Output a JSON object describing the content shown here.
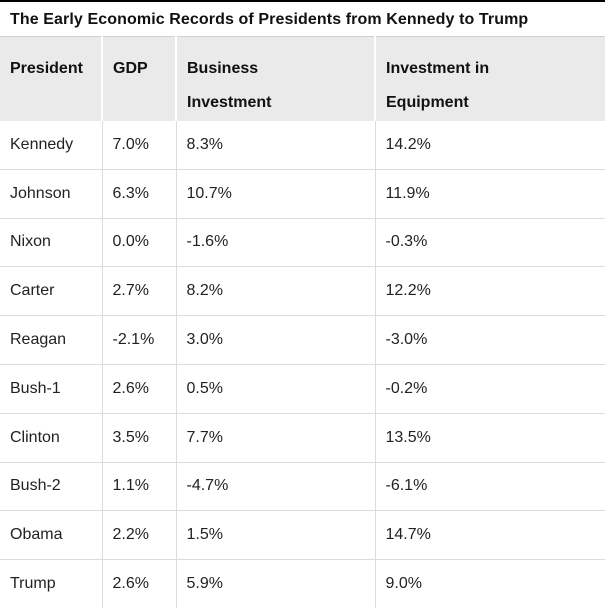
{
  "chart_data": {
    "type": "table",
    "title": "The Early Economic Records of Presidents from Kennedy to Trump",
    "columns": [
      "President",
      "GDP",
      "Business Investment",
      "Investment in Equipment"
    ],
    "column_display": [
      "President",
      "GDP",
      "Business\nInvestment",
      "Investment in\nEquipment"
    ],
    "column_keys": [
      "president",
      "gdp",
      "business-investment",
      "investment-in-equipment"
    ],
    "rows": [
      [
        "Kennedy",
        "7.0%",
        "8.3%",
        "14.2%"
      ],
      [
        "Johnson",
        "6.3%",
        "10.7%",
        "11.9%"
      ],
      [
        "Nixon",
        "0.0%",
        "-1.6%",
        "-0.3%"
      ],
      [
        "Carter",
        "2.7%",
        "8.2%",
        "12.2%"
      ],
      [
        "Reagan",
        "-2.1%",
        "3.0%",
        "-3.0%"
      ],
      [
        "Bush-1",
        "2.6%",
        "0.5%",
        "-0.2%"
      ],
      [
        "Clinton",
        "3.5%",
        "7.7%",
        "13.5%"
      ],
      [
        "Bush-2",
        "1.1%",
        "-4.7%",
        "-6.1%"
      ],
      [
        "Obama",
        "2.2%",
        "1.5%",
        "14.7%"
      ],
      [
        "Trump",
        "2.6%",
        "5.9%",
        "9.0%"
      ]
    ]
  },
  "colors": {
    "top_rule": "#000000",
    "header_background": "#eaeaea",
    "header_divider": "#ffffff",
    "grid_line": "#dcdcdc",
    "title_text": "#111111",
    "body_text": "#222222"
  }
}
